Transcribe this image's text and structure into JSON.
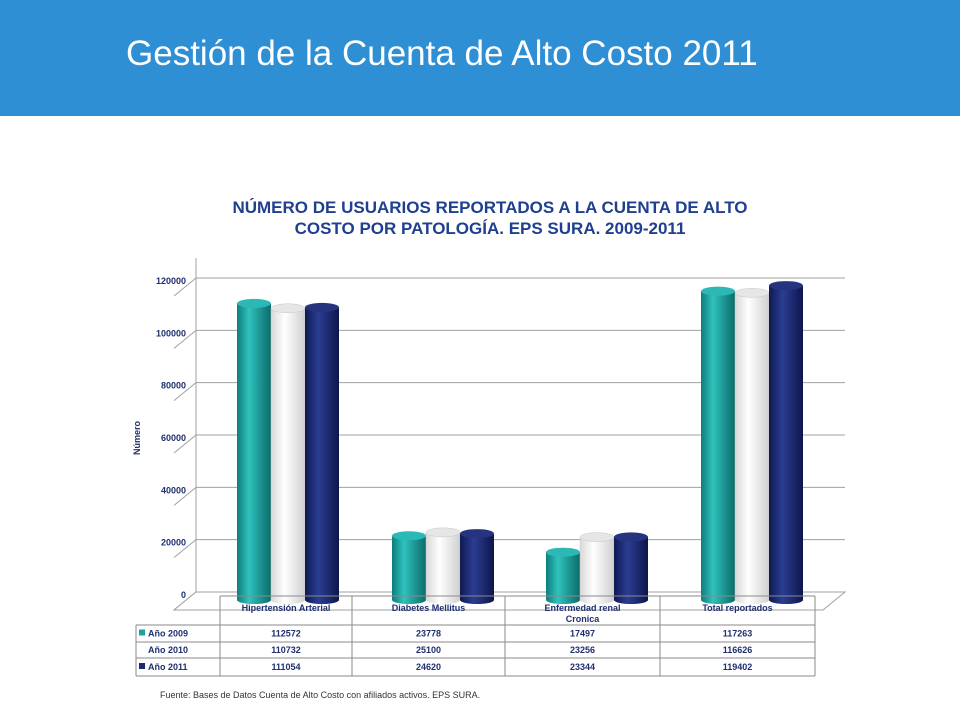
{
  "header": {
    "title": "Gestión de la Cuenta de Alto Costo 2011",
    "background": "#2f8fd4"
  },
  "chart_data": {
    "type": "bar",
    "title_lines": [
      "NÚMERO DE USUARIOS REPORTADOS A LA CUENTA DE ALTO",
      "COSTO  POR PATOLOGÍA. EPS SURA. 2009-2011"
    ],
    "ylabel": "Número",
    "xlabel": "",
    "ylim": [
      0,
      120000
    ],
    "yticks": [
      0,
      20000,
      40000,
      60000,
      80000,
      100000,
      120000
    ],
    "grid": true,
    "categories": [
      "Hipertensión Arterial",
      "Diabetes Mellitus",
      "Enfermedad renal Cronica",
      "Total reportados"
    ],
    "series": [
      {
        "name": "Año 2009",
        "values": [
          112572,
          23778,
          17497,
          117263
        ],
        "color": "#1aa3a0"
      },
      {
        "name": "Año 2010",
        "values": [
          110732,
          25100,
          23256,
          116626
        ],
        "color": "#ffffff"
      },
      {
        "name": "Año 2011",
        "values": [
          111054,
          24620,
          23344,
          119402
        ],
        "color": "#1c2a72"
      }
    ],
    "legend_placement": "data-table"
  },
  "source": "Fuente: Bases de Datos Cuenta de Alto Costo con afiliados activos.  EPS SURA."
}
